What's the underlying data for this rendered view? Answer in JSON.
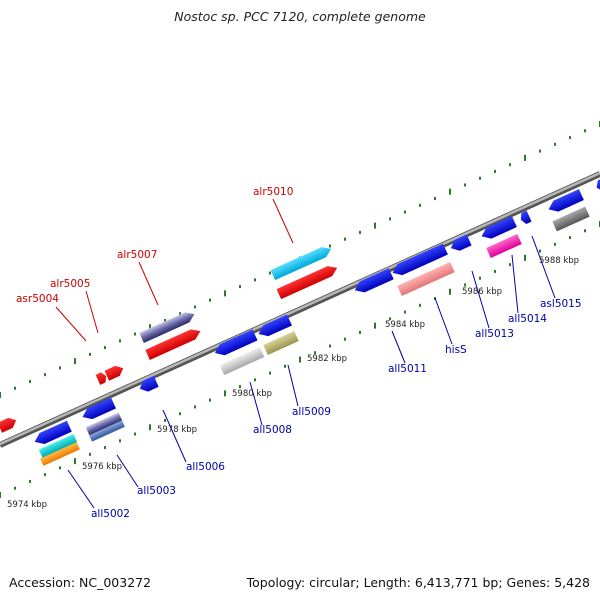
{
  "title": "Nostoc sp. PCC 7120, complete genome",
  "footer": {
    "accession": "Accession: NC_003272",
    "summary": "Topology: circular; Length: 6,413,771 bp; Genes: 5,428"
  },
  "colors": {
    "forward_label": "#cc0000",
    "reverse_label": "#0000aa",
    "backbone": "#8a8a8a",
    "tick": "#2a7a2a"
  },
  "scale_labels": [
    {
      "text": "5974 kbp",
      "kbp": 5974
    },
    {
      "text": "5976 kbp",
      "kbp": 5976
    },
    {
      "text": "5978 kbp",
      "kbp": 5978
    },
    {
      "text": "5980 kbp",
      "kbp": 5980
    },
    {
      "text": "5982 kbp",
      "kbp": 5982
    },
    {
      "text": "5984 kbp",
      "kbp": 5984
    },
    {
      "text": "5986 kbp",
      "kbp": 5986
    },
    {
      "text": "5988 kbp",
      "kbp": 5988
    }
  ],
  "gene_labels": [
    {
      "name": "asr5004",
      "strand": "forward"
    },
    {
      "name": "alr5005",
      "strand": "forward"
    },
    {
      "name": "alr5007",
      "strand": "forward"
    },
    {
      "name": "alr5010",
      "strand": "forward"
    },
    {
      "name": "all5002",
      "strand": "reverse"
    },
    {
      "name": "all5003",
      "strand": "reverse"
    },
    {
      "name": "all5006",
      "strand": "reverse"
    },
    {
      "name": "all5008",
      "strand": "reverse"
    },
    {
      "name": "all5009",
      "strand": "reverse"
    },
    {
      "name": "all5011",
      "strand": "reverse"
    },
    {
      "name": "hisS",
      "strand": "reverse"
    },
    {
      "name": "all5013",
      "strand": "reverse"
    },
    {
      "name": "all5014",
      "strand": "reverse"
    },
    {
      "name": "asl5015",
      "strand": "reverse"
    }
  ]
}
